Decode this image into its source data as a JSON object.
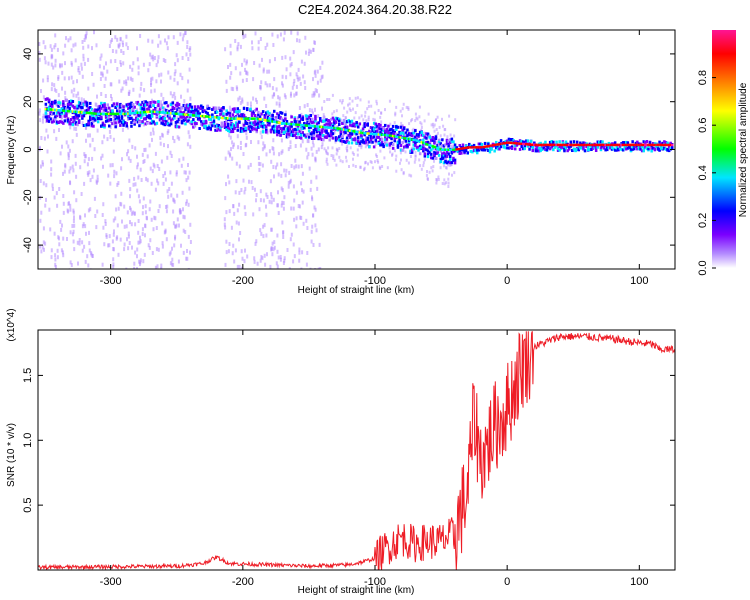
{
  "figure": {
    "title": "C2E4.2024.364.20.38.R22"
  },
  "chart_data": [
    {
      "type": "heatmap",
      "xlabel": "Height of straight line (km)",
      "ylabel": "Frequency (Hz)",
      "xlim": [
        -355,
        127
      ],
      "ylim": [
        -50,
        50
      ],
      "x_ticks": [
        -300,
        -200,
        -100,
        0,
        100
      ],
      "y_ticks": [
        -40,
        -20,
        0,
        20,
        40
      ],
      "colorbar": {
        "label": "Normalized spectral amplitude",
        "range": [
          0,
          1
        ],
        "ticks": [
          "0.0",
          "0.2",
          "0.4",
          "0.6",
          "0.8"
        ],
        "tick_values": [
          0,
          0.2,
          0.4,
          0.6,
          0.8
        ],
        "colors": [
          "#ffffff",
          "#b48cff",
          "#7b00ff",
          "#0000ff",
          "#00e5ff",
          "#00ff00",
          "#ffff00",
          "#ff8000",
          "#ff0000",
          "#ff1493"
        ]
      },
      "ridge": {
        "x": [
          -350,
          -330,
          -310,
          -290,
          -270,
          -250,
          -230,
          -210,
          -190,
          -170,
          -150,
          -130,
          -110,
          -90,
          -70,
          -50,
          -40,
          -30,
          -20,
          -10,
          0,
          20,
          40,
          60,
          80,
          100,
          125
        ],
        "freq": [
          17,
          16,
          15,
          15,
          16,
          15,
          14,
          13,
          13,
          11,
          10,
          9,
          7,
          6,
          4,
          0,
          0,
          1,
          1,
          2,
          3,
          2,
          2,
          2,
          2,
          2,
          2
        ]
      }
    },
    {
      "type": "line",
      "xlabel": "Height of straight line (km)",
      "ylabel": "SNR (10 * v/v)",
      "y_multiplier": "(x10^4)",
      "xlim": [
        -355,
        127
      ],
      "ylim": [
        0,
        1.85
      ],
      "x_ticks": [
        -300,
        -200,
        -100,
        0,
        100
      ],
      "y_ticks": [
        0.5,
        1.0,
        1.5
      ],
      "y_tick_labels": [
        "0.5",
        "1.0",
        "1.5"
      ],
      "series_color": "#ee1c25",
      "x": [
        -355,
        -300,
        -250,
        -230,
        -220,
        -210,
        -180,
        -150,
        -120,
        -110,
        -100,
        -90,
        -80,
        -70,
        -60,
        -50,
        -40,
        -30,
        -25,
        -20,
        -15,
        -10,
        -5,
        0,
        10,
        20,
        30,
        40,
        60,
        80,
        100,
        110,
        115,
        127
      ],
      "y": [
        0.02,
        0.025,
        0.03,
        0.05,
        0.1,
        0.05,
        0.04,
        0.03,
        0.04,
        0.06,
        0.09,
        0.18,
        0.25,
        0.2,
        0.22,
        0.22,
        0.28,
        0.6,
        1.2,
        0.85,
        0.95,
        1.1,
        1.15,
        1.25,
        1.55,
        1.72,
        1.76,
        1.8,
        1.8,
        1.78,
        1.75,
        1.74,
        1.7,
        1.7
      ]
    }
  ]
}
